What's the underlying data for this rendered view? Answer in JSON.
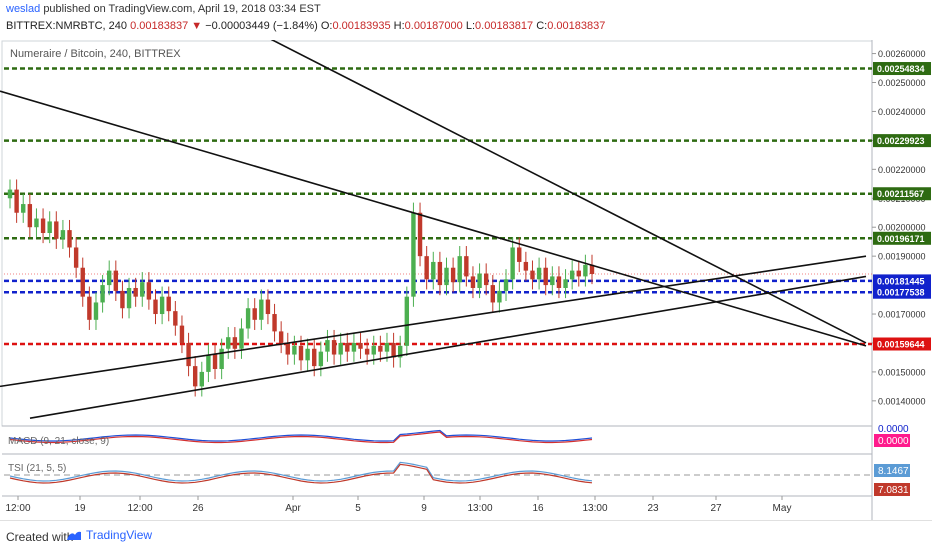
{
  "header": {
    "author": "weslad",
    "published_text": "published on TradingView.com, April 19, 2018 03:34 EST",
    "symbol": "BITTREX:NMRBTC, 240",
    "last": "0.00183837",
    "change_arrow": "▼",
    "change": "−0.00003449 (−1.84%)",
    "o_label": "O:",
    "o": "0.00183935",
    "h_label": "H:",
    "h": "0.00187000",
    "l_label": "L:",
    "l": "0.00183817",
    "c_label": "C:",
    "c": "0.00183837"
  },
  "footer": {
    "created_with": "Created with",
    "brand": "TradingView",
    "logo_icon": "tradingview-logo-icon"
  },
  "colors": {
    "green_line": "#2e6b12",
    "blue_line": "#1122cc",
    "red_line": "#dd1111",
    "bull": "#4caf50",
    "bear": "#c0392b",
    "trend": "#111111"
  },
  "chart_data": {
    "type": "candlestick",
    "title": "Numeraire / Bitcoin, 240, BITTREX",
    "y_axis_ticks": [
      "0.00260000",
      "0.00250000",
      "0.00240000",
      "0.00230000",
      "0.00220000",
      "0.00210000",
      "0.00200000",
      "0.00190000",
      "0.00170000",
      "0.00160000",
      "0.00150000",
      "0.00140000"
    ],
    "x_axis_ticks": [
      "12:00",
      "19",
      "12:00",
      "26",
      "Apr",
      "5",
      "9",
      "13:00",
      "16",
      "13:00",
      "23",
      "27",
      "May"
    ],
    "ylim": [
      0.00132,
      0.00264
    ],
    "horizontal_levels": [
      {
        "value": 0.00254834,
        "label": "0.00254834",
        "color": "green"
      },
      {
        "value": 0.00229923,
        "label": "0.00229923",
        "color": "green"
      },
      {
        "value": 0.00211567,
        "label": "0.00211567",
        "color": "green"
      },
      {
        "value": 0.00196171,
        "label": "0.00196171",
        "color": "green"
      },
      {
        "value": 0.00181445,
        "label": "0.00181445",
        "color": "blue"
      },
      {
        "value": 0.00177538,
        "label": "0.00177538",
        "color": "blue"
      },
      {
        "value": 0.00159644,
        "label": "0.00159644",
        "color": "red"
      }
    ],
    "trendlines": [
      {
        "from": [
          0,
          0.00247
        ],
        "to": [
          866,
          0.00159
        ]
      },
      {
        "from": [
          0,
          0.00145
        ],
        "to": [
          866,
          0.0019
        ]
      },
      {
        "from": [
          30,
          0.00134
        ],
        "to": [
          866,
          0.00183
        ]
      },
      {
        "from": [
          265,
          0.00266
        ],
        "to": [
          866,
          0.0016
        ]
      }
    ],
    "candles": [
      [
        0.0021,
        0.00213
      ],
      [
        0.00213,
        0.00205
      ],
      [
        0.00205,
        0.00208
      ],
      [
        0.00208,
        0.002
      ],
      [
        0.002,
        0.00203
      ],
      [
        0.00203,
        0.00198
      ],
      [
        0.00198,
        0.00202
      ],
      [
        0.00202,
        0.00196
      ],
      [
        0.00196,
        0.00199
      ],
      [
        0.00199,
        0.00193
      ],
      [
        0.00193,
        0.00186
      ],
      [
        0.00186,
        0.00176
      ],
      [
        0.00176,
        0.00168
      ],
      [
        0.00168,
        0.00174
      ],
      [
        0.00174,
        0.0018
      ],
      [
        0.0018,
        0.00185
      ],
      [
        0.00185,
        0.00178
      ],
      [
        0.00178,
        0.00172
      ],
      [
        0.00172,
        0.00179
      ],
      [
        0.00179,
        0.00176
      ],
      [
        0.00176,
        0.00181
      ],
      [
        0.00181,
        0.00175
      ],
      [
        0.00175,
        0.0017
      ],
      [
        0.0017,
        0.00176
      ],
      [
        0.00176,
        0.00171
      ],
      [
        0.00171,
        0.00166
      ],
      [
        0.00166,
        0.0016
      ],
      [
        0.0016,
        0.00152
      ],
      [
        0.00152,
        0.00145
      ],
      [
        0.00145,
        0.0015
      ],
      [
        0.0015,
        0.00156
      ],
      [
        0.00156,
        0.00151
      ],
      [
        0.00151,
        0.00158
      ],
      [
        0.00158,
        0.00162
      ],
      [
        0.00162,
        0.00158
      ],
      [
        0.00158,
        0.00165
      ],
      [
        0.00165,
        0.00172
      ],
      [
        0.00172,
        0.00168
      ],
      [
        0.00168,
        0.00175
      ],
      [
        0.00175,
        0.0017
      ],
      [
        0.0017,
        0.00164
      ],
      [
        0.00164,
        0.0016
      ],
      [
        0.0016,
        0.00156
      ],
      [
        0.00156,
        0.00159
      ],
      [
        0.00159,
        0.00154
      ],
      [
        0.00154,
        0.00158
      ],
      [
        0.00158,
        0.00152
      ],
      [
        0.00152,
        0.00157
      ],
      [
        0.00157,
        0.00161
      ],
      [
        0.00161,
        0.00156
      ],
      [
        0.00156,
        0.0016
      ],
      [
        0.0016,
        0.00157
      ],
      [
        0.00157,
        0.0016
      ],
      [
        0.0016,
        0.00158
      ],
      [
        0.00158,
        0.00156
      ],
      [
        0.00156,
        0.00159
      ],
      [
        0.00159,
        0.00157
      ],
      [
        0.00157,
        0.0016
      ],
      [
        0.0016,
        0.00155
      ],
      [
        0.00155,
        0.00159
      ],
      [
        0.00159,
        0.00176
      ],
      [
        0.00176,
        0.00205
      ],
      [
        0.00205,
        0.0019
      ],
      [
        0.0019,
        0.00182
      ],
      [
        0.00182,
        0.00188
      ],
      [
        0.00188,
        0.0018
      ],
      [
        0.0018,
        0.00186
      ],
      [
        0.00186,
        0.00181
      ],
      [
        0.00181,
        0.0019
      ],
      [
        0.0019,
        0.00183
      ],
      [
        0.00183,
        0.00179
      ],
      [
        0.00179,
        0.00184
      ],
      [
        0.00184,
        0.0018
      ],
      [
        0.0018,
        0.00174
      ],
      [
        0.00174,
        0.00178
      ],
      [
        0.00178,
        0.00182
      ],
      [
        0.00182,
        0.00193
      ],
      [
        0.00193,
        0.00188
      ],
      [
        0.00188,
        0.00185
      ],
      [
        0.00185,
        0.00182
      ],
      [
        0.00182,
        0.00186
      ],
      [
        0.00186,
        0.0018
      ],
      [
        0.0018,
        0.00183
      ],
      [
        0.00183,
        0.00179
      ],
      [
        0.00179,
        0.00182
      ],
      [
        0.00182,
        0.00185
      ],
      [
        0.00185,
        0.00183
      ],
      [
        0.00183,
        0.00187
      ],
      [
        0.00187,
        0.00183837
      ]
    ],
    "indicators": [
      {
        "name": "MACD (9, 21, close, 9)",
        "values": [
          "0.0000",
          "0.0000"
        ]
      },
      {
        "name": "TSI (21, 5, 5)",
        "values": [
          "8.1467",
          "7.0831"
        ]
      }
    ]
  }
}
